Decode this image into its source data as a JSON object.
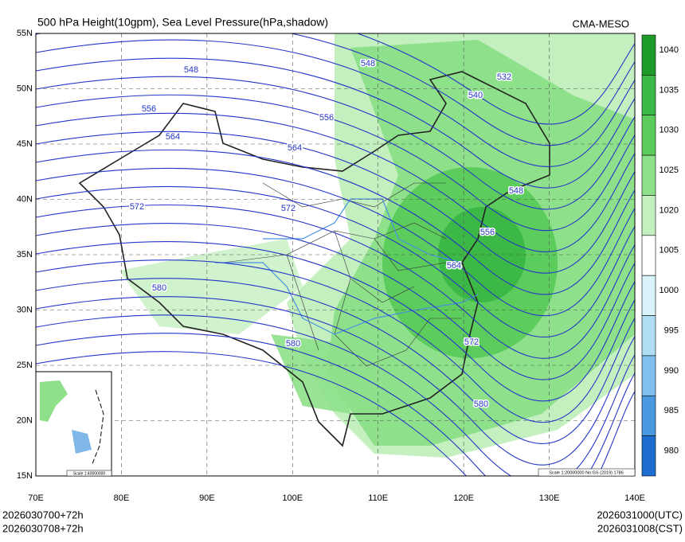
{
  "header": {
    "title": "500 hPa Height(10gpm), Sea Level Pressure(hPa,shadow)",
    "source": "CMA-MESO"
  },
  "map": {
    "lat_labels": [
      "55N",
      "50N",
      "45N",
      "40N",
      "35N",
      "30N",
      "25N",
      "20N",
      "15N"
    ],
    "lon_labels": [
      "70E",
      "80E",
      "90E",
      "100E",
      "110E",
      "120E",
      "130E",
      "140E"
    ],
    "contour_labels": [
      "548",
      "556",
      "564",
      "572",
      "580",
      "548",
      "556",
      "564",
      "572",
      "580",
      "540",
      "532",
      "548",
      "556",
      "564",
      "572",
      "580"
    ],
    "scale_note": "Scale 1:20000000 No:GS (2019) 1786",
    "inset_scale": "Scale 1:40000000"
  },
  "colorbar": {
    "levels": [
      "1040",
      "1035",
      "1030",
      "1025",
      "1020",
      "1005",
      "1000",
      "995",
      "990",
      "985",
      "980"
    ],
    "colors": [
      "#1e9a28",
      "#3cb846",
      "#5ccc5c",
      "#8ee08a",
      "#c4f0c0",
      "#ffffff",
      "#d8f4fa",
      "#b0dff5",
      "#80c0ee",
      "#4a98e0",
      "#1e6ed0"
    ]
  },
  "footer": {
    "init_utc": "2026030700+72h",
    "init_cst": "2026030708+72h",
    "valid_utc": "2026031000(UTC)",
    "valid_cst": "2026031008(CST)"
  }
}
